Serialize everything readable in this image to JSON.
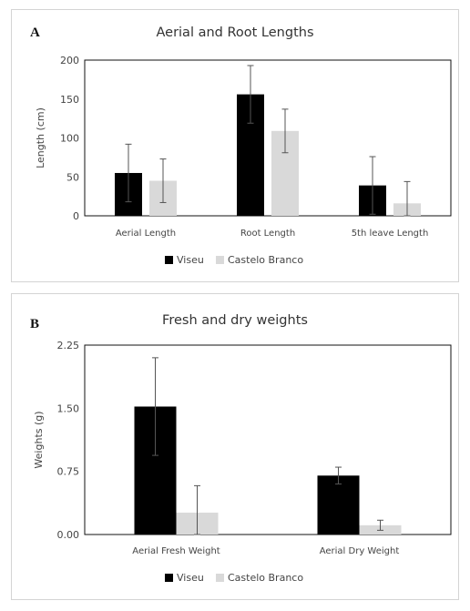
{
  "chart_data": [
    {
      "panel_label": "A",
      "type": "bar",
      "title": "Aerial and Root Lengths",
      "xlabel": "",
      "ylabel": "Length (cm)",
      "ylim": [
        0,
        200
      ],
      "yticks": [
        0,
        50,
        100,
        150,
        200
      ],
      "ytick_labels": [
        "0",
        "50",
        "100",
        "150",
        "200"
      ],
      "categories": [
        "Aerial Length",
        "Root Length",
        "5th leave Length"
      ],
      "series": [
        {
          "name": "Viseu",
          "color": "#000000",
          "values": [
            55,
            156,
            39
          ],
          "error": [
            37,
            37,
            37
          ]
        },
        {
          "name": "Castelo Branco",
          "color": "#d9d9d9",
          "values": [
            45,
            109,
            16
          ],
          "error": [
            28,
            28,
            28
          ]
        }
      ],
      "grid": false,
      "legend": "bottom"
    },
    {
      "panel_label": "B",
      "type": "bar",
      "title": "Fresh and dry weights",
      "xlabel": "",
      "ylabel": "Weights (g)",
      "ylim": [
        0,
        2.25
      ],
      "yticks": [
        0,
        0.75,
        1.5,
        2.25
      ],
      "ytick_labels": [
        "0.00",
        "0.75",
        "1.50",
        "2.25"
      ],
      "categories": [
        "Aerial Fresh Weight",
        "Aerial Dry Weight"
      ],
      "series": [
        {
          "name": "Viseu",
          "color": "#000000",
          "values": [
            1.52,
            0.7
          ],
          "error": [
            0.58,
            0.1
          ]
        },
        {
          "name": "Castelo Branco",
          "color": "#d9d9d9",
          "values": [
            0.26,
            0.11
          ],
          "error": [
            0.32,
            0.06
          ]
        }
      ],
      "grid": false,
      "legend": "bottom"
    }
  ]
}
